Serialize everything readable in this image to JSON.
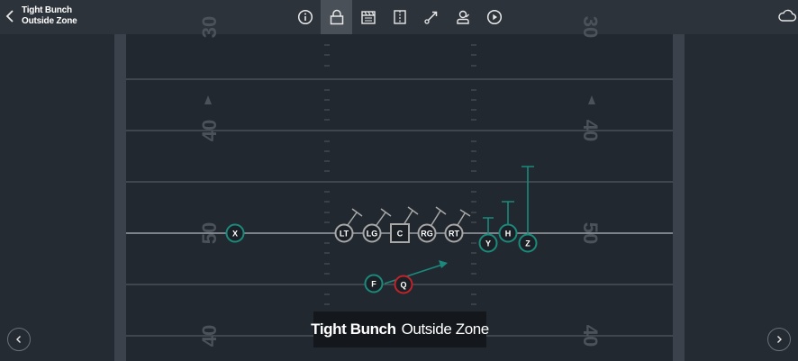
{
  "header": {
    "title_line1": "Tight Bunch",
    "title_line2": "Outside Zone"
  },
  "toolbar": {
    "tools": [
      {
        "name": "info-icon",
        "active": false
      },
      {
        "name": "lock-icon",
        "active": true
      },
      {
        "name": "clapperboard-icon",
        "active": false
      },
      {
        "name": "flip-icon",
        "active": false
      },
      {
        "name": "route-draw-icon",
        "active": false
      },
      {
        "name": "player-stamp-icon",
        "active": false
      },
      {
        "name": "play-icon",
        "active": false
      }
    ]
  },
  "field": {
    "yard_numbers": {
      "top": "30",
      "upper": "40",
      "middle": "50",
      "lower": "40"
    }
  },
  "players": {
    "X": "X",
    "LT": "LT",
    "LG": "LG",
    "C": "C",
    "RG": "RG",
    "RT": "RT",
    "Y": "Y",
    "H": "H",
    "Z": "Z",
    "F": "F",
    "Q": "Q"
  },
  "caption": {
    "formation": "Tight Bunch",
    "play": "Outside Zone"
  },
  "colors": {
    "route": "#1b8a7c",
    "qb": "#c0242b",
    "lineman": "#a8a8a8",
    "line_of_scrimmage": "#9aa0a6"
  }
}
